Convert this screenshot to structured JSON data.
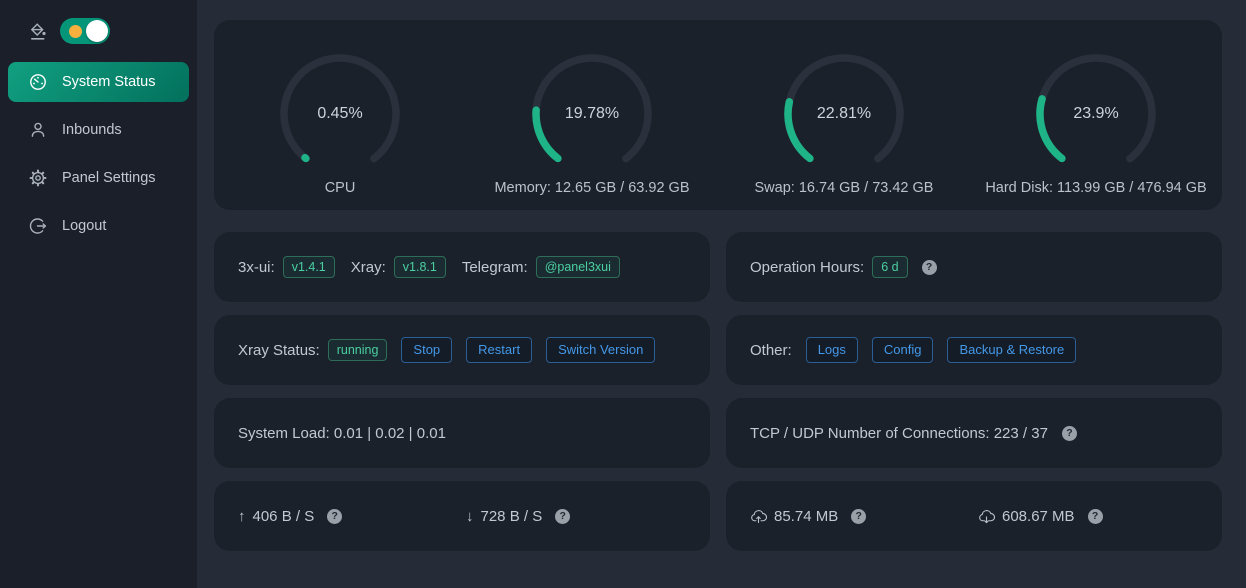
{
  "colors": {
    "accent_green": "#1fb487",
    "active_item_gradient": [
      "#11a081",
      "#03705c"
    ],
    "button_blue": "#4498e8",
    "toggle_sun_orange": "#f7b03e",
    "sidebar_bg": "#1a1f29",
    "content_bg": "#262c37",
    "card_bg": "#1b212b"
  },
  "ui": {
    "qmark": "?",
    "arrow_up": "↑",
    "arrow_down": "↓"
  },
  "sidebar": {
    "theme_toggle": {
      "state": "on"
    },
    "items": [
      {
        "label": "System Status",
        "icon": "dashboard-icon",
        "active": true
      },
      {
        "label": "Inbounds",
        "icon": "user-icon",
        "active": false
      },
      {
        "label": "Panel Settings",
        "icon": "gear-icon",
        "active": false
      },
      {
        "label": "Logout",
        "icon": "logout-icon",
        "active": false
      }
    ]
  },
  "status_card": {
    "gauges": [
      {
        "percent": 0.45,
        "percent_text": "0.45%",
        "label": "CPU"
      },
      {
        "percent": 19.78,
        "percent_text": "19.78%",
        "label": "Memory: 12.65 GB / 63.92 GB"
      },
      {
        "percent": 22.81,
        "percent_text": "22.81%",
        "label": "Swap: 16.74 GB / 73.42 GB"
      },
      {
        "percent": 23.9,
        "percent_text": "23.9%",
        "label": "Hard Disk: 113.99 GB / 476.94 GB"
      }
    ]
  },
  "cards": {
    "versions": {
      "app_label": "3x-ui:",
      "app_version": "v1.4.1",
      "xray_label": "Xray:",
      "xray_version": "v1.8.1",
      "telegram_label": "Telegram:",
      "telegram_value": "@panel3xui"
    },
    "uptime": {
      "label": "Operation Hours:",
      "value": "6 d"
    },
    "xray_status": {
      "label": "Xray Status:",
      "state": "running",
      "buttons": [
        {
          "label": "Stop"
        },
        {
          "label": "Restart"
        },
        {
          "label": "Switch Version"
        }
      ]
    },
    "other": {
      "label": "Other:",
      "buttons": [
        {
          "label": "Logs"
        },
        {
          "label": "Config"
        },
        {
          "label": "Backup & Restore"
        }
      ]
    },
    "system_load": {
      "text": "System Load: 0.01 | 0.02 | 0.01"
    },
    "connections": {
      "text": "TCP / UDP Number of Connections: 223 / 37"
    },
    "network_speed": {
      "up": "406 B / S",
      "down": "728 B / S"
    },
    "network_total": {
      "up": "85.74 MB",
      "down": "608.67 MB"
    }
  }
}
